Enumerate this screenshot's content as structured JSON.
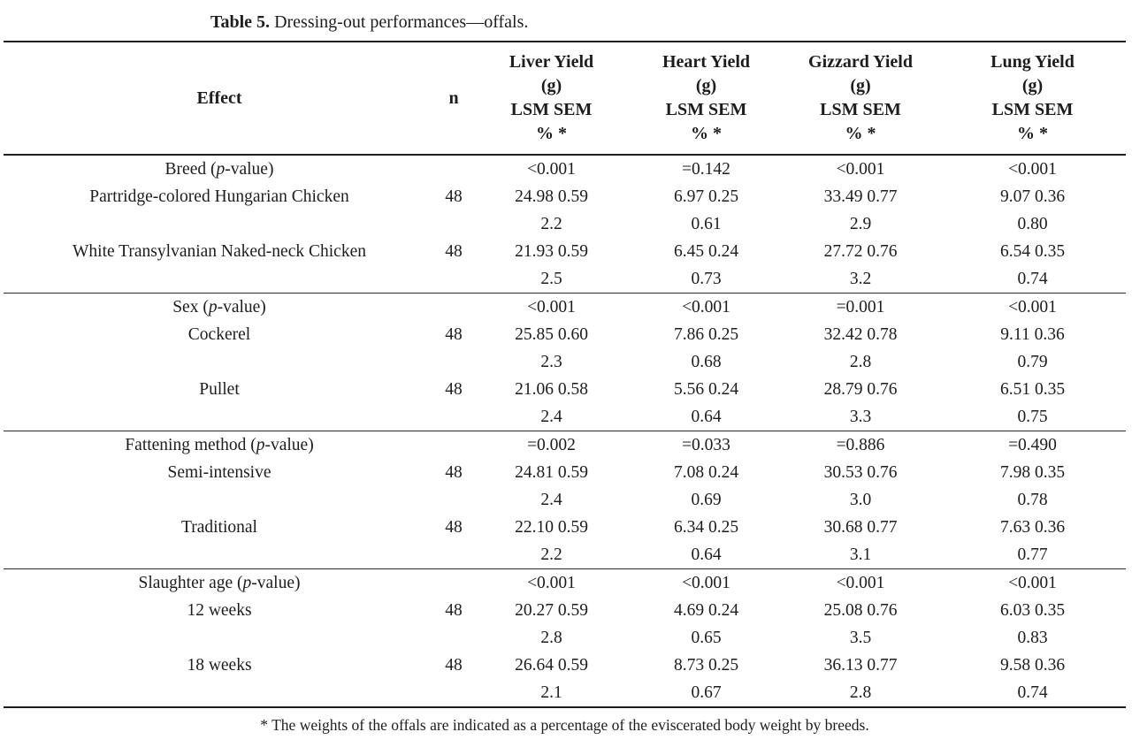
{
  "caption": {
    "label": "Table 5.",
    "text": "Dressing-out performances—offals."
  },
  "header": {
    "effect": "Effect",
    "n": "n",
    "columns": [
      {
        "l1": "Liver Yield",
        "l2": "(g)",
        "l3": "LSM SEM",
        "l4": "% *"
      },
      {
        "l1": "Heart Yield",
        "l2": "(g)",
        "l3": "LSM SEM",
        "l4": "% *"
      },
      {
        "l1": "Gizzard Yield",
        "l2": "(g)",
        "l3": "LSM SEM",
        "l4": "% *"
      },
      {
        "l1": "Lung Yield",
        "l2": "(g)",
        "l3": "LSM SEM",
        "l4": "% *"
      }
    ]
  },
  "sections": [
    {
      "label": {
        "pre": "Breed (",
        "italic": "p",
        "post": "-value)"
      },
      "p_values": [
        "<0.001",
        "=0.142",
        "<0.001",
        "<0.001"
      ],
      "levels": [
        {
          "name": "Partridge-colored Hungarian Chicken",
          "n": "48",
          "lsm_sem": [
            "24.98 0.59",
            "6.97 0.25",
            "33.49 0.77",
            "9.07 0.36"
          ],
          "percent": [
            "2.2",
            "0.61",
            "2.9",
            "0.80"
          ]
        },
        {
          "name": "White Transylvanian Naked-neck Chicken",
          "n": "48",
          "lsm_sem": [
            "21.93 0.59",
            "6.45 0.24",
            "27.72 0.76",
            "6.54 0.35"
          ],
          "percent": [
            "2.5",
            "0.73",
            "3.2",
            "0.74"
          ]
        }
      ]
    },
    {
      "label": {
        "pre": "Sex (",
        "italic": "p",
        "post": "-value)"
      },
      "p_values": [
        "<0.001",
        "<0.001",
        "=0.001",
        "<0.001"
      ],
      "levels": [
        {
          "name": "Cockerel",
          "n": "48",
          "lsm_sem": [
            "25.85 0.60",
            "7.86 0.25",
            "32.42 0.78",
            "9.11 0.36"
          ],
          "percent": [
            "2.3",
            "0.68",
            "2.8",
            "0.79"
          ]
        },
        {
          "name": "Pullet",
          "n": "48",
          "lsm_sem": [
            "21.06 0.58",
            "5.56 0.24",
            "28.79 0.76",
            "6.51 0.35"
          ],
          "percent": [
            "2.4",
            "0.64",
            "3.3",
            "0.75"
          ]
        }
      ]
    },
    {
      "label": {
        "pre": "Fattening method (",
        "italic": "p",
        "post": "-value)"
      },
      "p_values": [
        "=0.002",
        "=0.033",
        "=0.886",
        "=0.490"
      ],
      "levels": [
        {
          "name": "Semi-intensive",
          "n": "48",
          "lsm_sem": [
            "24.81 0.59",
            "7.08 0.24",
            "30.53 0.76",
            "7.98 0.35"
          ],
          "percent": [
            "2.4",
            "0.69",
            "3.0",
            "0.78"
          ]
        },
        {
          "name": "Traditional",
          "n": "48",
          "lsm_sem": [
            "22.10 0.59",
            "6.34 0.25",
            "30.68 0.77",
            "7.63 0.36"
          ],
          "percent": [
            "2.2",
            "0.64",
            "3.1",
            "0.77"
          ]
        }
      ]
    },
    {
      "label": {
        "pre": "Slaughter age (",
        "italic": "p",
        "post": "-value)"
      },
      "p_values": [
        "<0.001",
        "<0.001",
        "<0.001",
        "<0.001"
      ],
      "levels": [
        {
          "name": "12 weeks",
          "n": "48",
          "lsm_sem": [
            "20.27 0.59",
            "4.69 0.24",
            "25.08 0.76",
            "6.03 0.35"
          ],
          "percent": [
            "2.8",
            "0.65",
            "3.5",
            "0.83"
          ]
        },
        {
          "name": "18 weeks",
          "n": "48",
          "lsm_sem": [
            "26.64 0.59",
            "8.73 0.25",
            "36.13 0.77",
            "9.58 0.36"
          ],
          "percent": [
            "2.1",
            "0.67",
            "2.8",
            "0.74"
          ]
        }
      ]
    }
  ],
  "footnote": "* The weights of the offals are indicated as a percentage of the eviscerated body weight by breeds."
}
